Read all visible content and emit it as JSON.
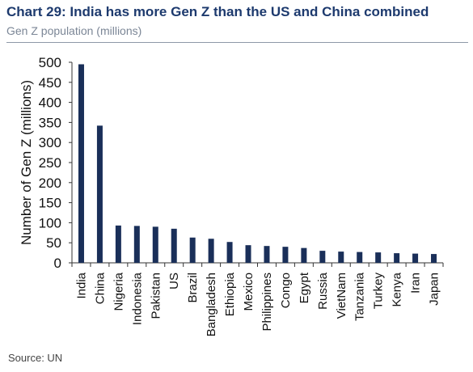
{
  "header": {
    "title": "Chart 29: India has more Gen Z than the US and China combined",
    "subtitle": "Gen Z population (millions)"
  },
  "footer": {
    "source": "Source: UN"
  },
  "colors": {
    "bar": "#1a2f59",
    "axis": "#333333",
    "text": "#111111"
  },
  "chart_data": {
    "type": "bar",
    "title": "Chart 29: India has more Gen Z than the US and China combined",
    "subtitle": "Gen Z population (millions)",
    "xlabel": "",
    "ylabel": "Number of Gen Z (millions)",
    "ylim": [
      0,
      500
    ],
    "yticks": [
      0,
      50,
      100,
      150,
      200,
      250,
      300,
      350,
      400,
      450,
      500
    ],
    "grid": false,
    "legend": "none",
    "categories": [
      "India",
      "China",
      "Nigeria",
      "Indonesia",
      "Pakistan",
      "US",
      "Brazil",
      "Bangladesh",
      "Ethiopia",
      "Mexico",
      "Philippines",
      "Congo",
      "Egypt",
      "Russia",
      "VietNam",
      "Tanzania",
      "Turkey",
      "Kenya",
      "Iran",
      "Japan"
    ],
    "values": [
      495,
      342,
      93,
      92,
      90,
      85,
      63,
      60,
      52,
      44,
      42,
      40,
      37,
      30,
      28,
      27,
      26,
      24,
      23,
      22
    ]
  }
}
